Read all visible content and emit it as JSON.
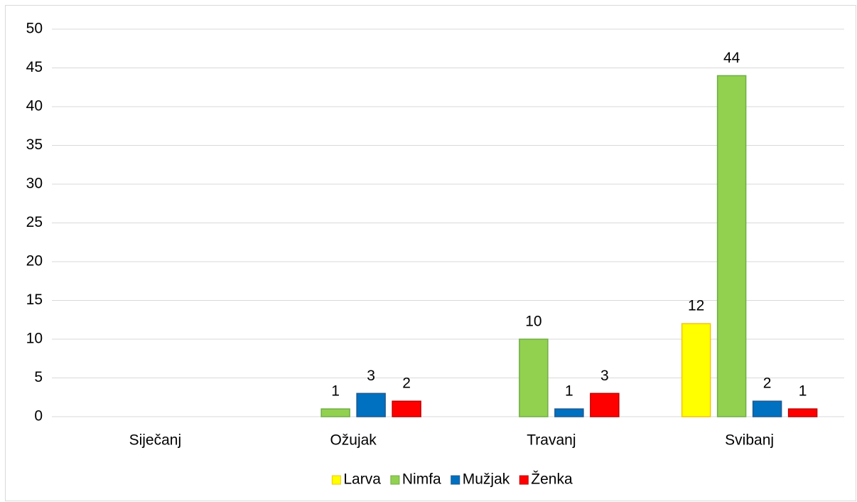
{
  "chart_data": {
    "type": "bar",
    "categories": [
      "Siječanj",
      "Ožujak",
      "Travanj",
      "Svibanj"
    ],
    "series": [
      {
        "name": "Larva",
        "color": "#ffff00",
        "values": [
          0,
          0,
          0,
          12
        ]
      },
      {
        "name": "Nimfa",
        "color": "#92d050",
        "values": [
          0,
          1,
          10,
          44
        ]
      },
      {
        "name": "Mužjak",
        "color": "#0070c0",
        "values": [
          0,
          3,
          1,
          2
        ]
      },
      {
        "name": "Ženka",
        "color": "#ff0000",
        "values": [
          0,
          2,
          3,
          1
        ]
      }
    ],
    "ylim": [
      0,
      50
    ],
    "yticks": [
      0,
      5,
      10,
      15,
      20,
      25,
      30,
      35,
      40,
      45,
      50
    ],
    "grid": true,
    "legend": "bottom"
  }
}
